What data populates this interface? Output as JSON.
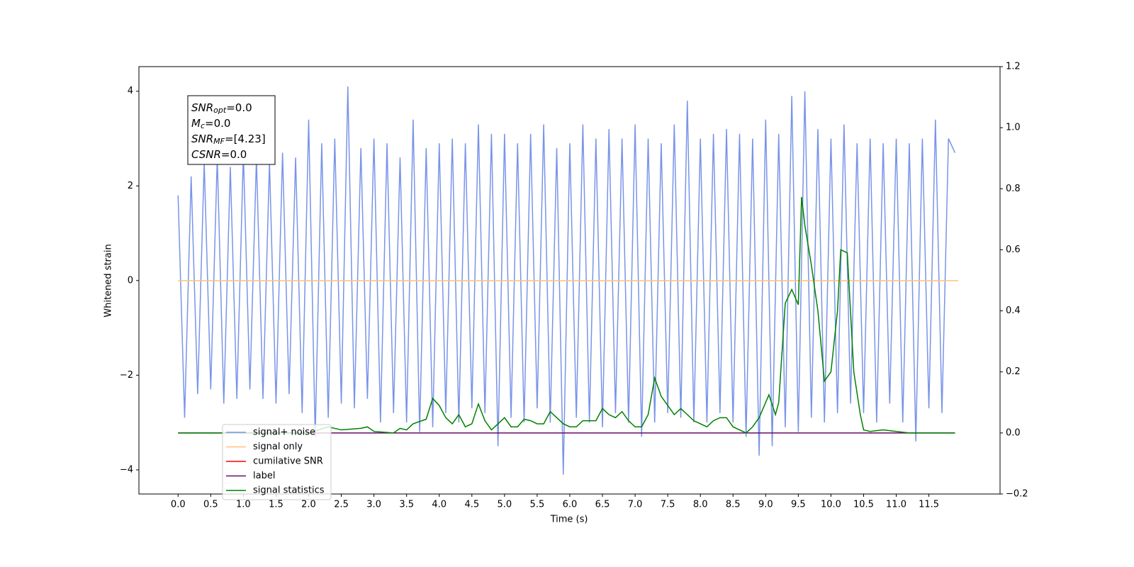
{
  "chart_data": {
    "type": "line",
    "xlabel": "Time (s)",
    "ylabel": "Whitened strain",
    "xlim": [
      -0.6,
      12.59
    ],
    "ylim": [
      -4.51,
      4.52
    ],
    "y2lim": [
      -0.2,
      1.2
    ],
    "xticks": [
      {
        "value": 0,
        "label": "0.0"
      },
      0.5,
      {
        "value": 1,
        "label": "1.0"
      },
      1.5,
      {
        "value": 2,
        "label": "2.0"
      },
      2.5,
      {
        "value": 3,
        "label": "3.0"
      },
      3.5,
      {
        "value": 4,
        "label": "4.0"
      },
      4.5,
      {
        "value": 5,
        "label": "5.0"
      },
      5.5,
      {
        "value": 6,
        "label": "6.0"
      },
      6.5,
      {
        "value": 7,
        "label": "7.0"
      },
      7.5,
      {
        "value": 8,
        "label": "8.0"
      },
      8.5,
      {
        "value": 9,
        "label": "9.0"
      },
      9.5,
      {
        "value": 10,
        "label": "10.0"
      },
      10.5,
      {
        "value": 11,
        "label": "11.0"
      },
      11.5
    ],
    "yticks": [
      {
        "value": -4,
        "label": "−4"
      },
      {
        "value": -2,
        "label": "−2"
      },
      0,
      2,
      4
    ],
    "y2ticks": [
      {
        "value": -0.2,
        "label": "−0.2"
      },
      {
        "value": 0,
        "label": "0.0"
      },
      0.2,
      0.4,
      0.6,
      0.8,
      {
        "value": 1,
        "label": "1.0"
      },
      1.2
    ],
    "annotation": [
      {
        "main": "SNR",
        "sub": "opt",
        "rest": "=0.0"
      },
      {
        "main": "M",
        "sub": "c",
        "rest": "=0.0"
      },
      {
        "main": "SNR",
        "sub": "MF",
        "rest": "=[4.23]"
      },
      {
        "main": "CSNR",
        "sub": null,
        "rest": "=0.0"
      }
    ],
    "series": [
      {
        "name": "signal+ noise",
        "color": "#7994e8",
        "x": [
          0.0,
          0.1,
          0.2,
          0.3,
          0.4,
          0.5,
          0.6,
          0.7,
          0.8,
          0.9,
          1.0,
          1.1,
          1.2,
          1.3,
          1.4,
          1.5,
          1.6,
          1.7,
          1.8,
          1.9,
          2.0,
          2.1,
          2.2,
          2.3,
          2.4,
          2.5,
          2.6,
          2.7,
          2.8,
          2.9,
          3.0,
          3.1,
          3.2,
          3.3,
          3.4,
          3.5,
          3.6,
          3.7,
          3.8,
          3.9,
          4.0,
          4.1,
          4.2,
          4.3,
          4.4,
          4.5,
          4.6,
          4.7,
          4.8,
          4.9,
          5.0,
          5.1,
          5.2,
          5.3,
          5.4,
          5.5,
          5.6,
          5.7,
          5.8,
          5.9,
          6.0,
          6.1,
          6.2,
          6.3,
          6.4,
          6.5,
          6.6,
          6.7,
          6.8,
          6.9,
          7.0,
          7.1,
          7.2,
          7.3,
          7.4,
          7.5,
          7.6,
          7.7,
          7.8,
          7.9,
          8.0,
          8.1,
          8.2,
          8.3,
          8.4,
          8.5,
          8.6,
          8.7,
          8.8,
          8.9,
          9.0,
          9.1,
          9.2,
          9.3,
          9.4,
          9.5,
          9.6,
          9.7,
          9.8,
          9.9,
          10.0,
          10.1,
          10.2,
          10.3,
          10.4,
          10.5,
          10.6,
          10.7,
          10.8,
          10.9,
          11.0,
          11.1,
          11.2,
          11.3,
          11.4,
          11.5,
          11.6,
          11.7,
          11.8,
          11.9
        ],
        "values": [
          1.8,
          -2.9,
          2.2,
          -2.4,
          2.5,
          -2.3,
          2.6,
          -2.6,
          2.4,
          -2.5,
          2.7,
          -2.3,
          2.6,
          -2.5,
          2.5,
          -2.6,
          2.7,
          -2.4,
          2.6,
          -2.8,
          3.4,
          -3.3,
          2.9,
          -2.9,
          3.0,
          -2.6,
          4.1,
          -2.7,
          2.8,
          -2.5,
          3.0,
          -3.0,
          2.9,
          -2.8,
          2.6,
          -3.0,
          3.4,
          -3.2,
          2.8,
          -3.1,
          2.9,
          -2.8,
          3.0,
          -3.0,
          2.9,
          -2.7,
          3.3,
          -2.8,
          3.1,
          -3.5,
          3.1,
          -2.9,
          2.9,
          -3.0,
          3.1,
          -2.7,
          3.3,
          -3.0,
          2.8,
          -4.1,
          2.9,
          -2.9,
          3.3,
          -3.0,
          3.0,
          -3.1,
          3.2,
          -2.8,
          3.0,
          -3.0,
          3.3,
          -3.3,
          3.0,
          -3.0,
          2.9,
          -2.8,
          3.3,
          -2.9,
          3.8,
          -3.0,
          3.0,
          -3.0,
          3.1,
          -2.8,
          3.2,
          -3.0,
          3.1,
          -3.3,
          3.0,
          -3.7,
          3.4,
          -3.5,
          3.1,
          -3.1,
          3.9,
          -3.2,
          4.0,
          -2.9,
          3.2,
          -3.0,
          3.0,
          -2.8,
          3.3,
          -2.6,
          2.9,
          -2.8,
          3.0,
          -3.0,
          2.9,
          -2.6,
          3.0,
          -3.0,
          2.9,
          -3.4,
          3.0,
          -2.7,
          3.4,
          -2.8,
          3.0,
          2.7
        ]
      },
      {
        "name": "signal only",
        "color": "#ffc374",
        "x": [
          0.0,
          11.95
        ],
        "values": [
          0,
          0
        ]
      },
      {
        "name": "cumilative SNR",
        "color": "#ff0000",
        "x": [],
        "values": []
      },
      {
        "name": "label",
        "color": "#6a0a6a",
        "axis": "y2",
        "x": [
          0.0,
          11.9
        ],
        "values": [
          0,
          0
        ]
      },
      {
        "name": "signal statistics",
        "color": "#008000",
        "axis": "y2",
        "x": [
          0.0,
          2.0,
          2.3,
          2.5,
          2.8,
          2.9,
          3.0,
          3.3,
          3.4,
          3.5,
          3.6,
          3.8,
          3.9,
          4.0,
          4.1,
          4.2,
          4.3,
          4.4,
          4.5,
          4.6,
          4.7,
          4.8,
          4.9,
          5.0,
          5.1,
          5.2,
          5.3,
          5.4,
          5.5,
          5.6,
          5.7,
          5.8,
          5.9,
          6.0,
          6.1,
          6.2,
          6.4,
          6.5,
          6.6,
          6.7,
          6.8,
          6.9,
          7.0,
          7.1,
          7.2,
          7.3,
          7.4,
          7.5,
          7.6,
          7.7,
          7.8,
          7.9,
          8.0,
          8.1,
          8.2,
          8.3,
          8.4,
          8.5,
          8.6,
          8.7,
          8.8,
          8.9,
          9.05,
          9.15,
          9.2,
          9.3,
          9.4,
          9.5,
          9.55,
          9.6,
          9.7,
          9.8,
          9.9,
          10.0,
          10.1,
          10.15,
          10.25,
          10.35,
          10.45,
          10.5,
          10.6,
          10.8,
          11.0,
          11.2,
          11.9
        ],
        "values": [
          0,
          0,
          0.02,
          0.01,
          0.015,
          0.02,
          0.005,
          0,
          0.015,
          0.01,
          0.03,
          0.045,
          0.113,
          0.09,
          0.05,
          0.03,
          0.06,
          0.02,
          0.03,
          0.095,
          0.04,
          0.01,
          0.03,
          0.05,
          0.02,
          0.02,
          0.045,
          0.04,
          0.03,
          0.03,
          0.07,
          0.05,
          0.03,
          0.02,
          0.02,
          0.04,
          0.04,
          0.08,
          0.06,
          0.05,
          0.07,
          0.04,
          0.02,
          0.02,
          0.06,
          0.18,
          0.12,
          0.09,
          0.06,
          0.08,
          0.06,
          0.04,
          0.03,
          0.02,
          0.04,
          0.05,
          0.05,
          0.02,
          0.01,
          0,
          0.02,
          0.05,
          0.125,
          0.06,
          0.1,
          0.425,
          0.47,
          0.42,
          0.773,
          0.68,
          0.55,
          0.4,
          0.17,
          0.2,
          0.4,
          0.6,
          0.59,
          0.2,
          0.06,
          0.01,
          0.005,
          0.01,
          0.005,
          0,
          0
        ]
      }
    ]
  }
}
